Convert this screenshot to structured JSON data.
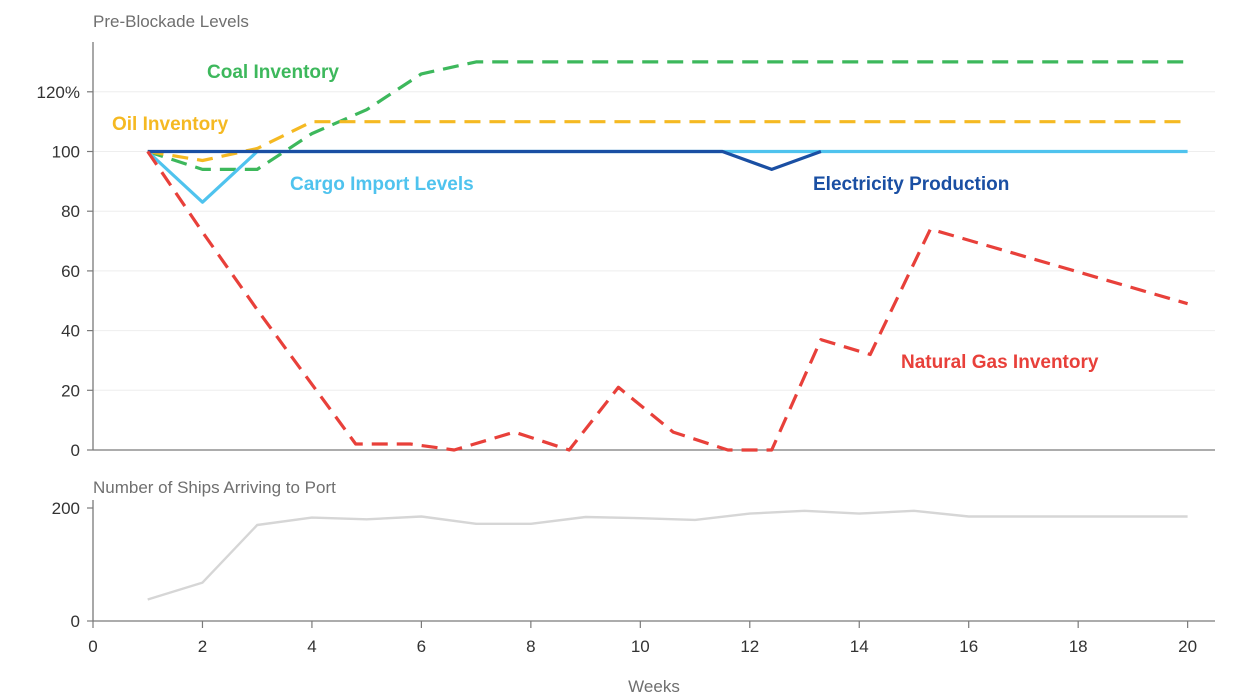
{
  "chart_data": [
    {
      "type": "line",
      "title": "Pre-Blockade Levels",
      "xlabel": "Weeks",
      "ylabel": "",
      "xlim": [
        0,
        20.5
      ],
      "ylim": [
        0,
        130
      ],
      "y_ticks": [
        0,
        20,
        40,
        60,
        80,
        100,
        120
      ],
      "y_tick_labels": [
        "0",
        "20",
        "40",
        "60",
        "80",
        "100",
        "120%"
      ],
      "grid": "horizontal",
      "series": [
        {
          "name": "Coal Inventory",
          "color": "#3db85c",
          "style": "dashed",
          "points": [
            [
              1,
              100
            ],
            [
              2,
              94
            ],
            [
              3,
              94
            ],
            [
              4,
              106
            ],
            [
              5,
              114
            ],
            [
              5.5,
              120
            ],
            [
              6,
              126
            ],
            [
              7,
              130
            ],
            [
              20,
              130
            ]
          ]
        },
        {
          "name": "Oil Inventory",
          "color": "#f5b922",
          "style": "dashed",
          "points": [
            [
              1,
              100
            ],
            [
              2,
              97
            ],
            [
              3,
              101
            ],
            [
              4,
              110
            ],
            [
              20,
              110
            ]
          ]
        },
        {
          "name": "Cargo Import Levels",
          "color": "#4fc3ee",
          "style": "solid",
          "points": [
            [
              1,
              100
            ],
            [
              2,
              83
            ],
            [
              3,
              100
            ],
            [
              20,
              100
            ]
          ]
        },
        {
          "name": "Electricity Production",
          "color": "#1a4fa3",
          "style": "solid",
          "points": [
            [
              1,
              100
            ],
            [
              2.9,
              100
            ],
            [
              11.5,
              100
            ],
            [
              12.4,
              94
            ],
            [
              13.3,
              100
            ]
          ]
        },
        {
          "name": "Natural Gas Inventory",
          "color": "#e8403a",
          "style": "dashed",
          "points": [
            [
              1,
              100
            ],
            [
              2,
              73
            ],
            [
              3,
              47
            ],
            [
              4,
              22
            ],
            [
              4.8,
              2
            ],
            [
              5.8,
              2
            ],
            [
              6.6,
              0
            ],
            [
              7.7,
              6
            ],
            [
              8.7,
              0
            ],
            [
              9.6,
              21
            ],
            [
              10.6,
              6
            ],
            [
              11.6,
              0
            ],
            [
              12.4,
              0
            ],
            [
              13.3,
              37
            ],
            [
              14.2,
              32
            ],
            [
              15.3,
              74
            ],
            [
              20,
              49
            ]
          ]
        }
      ]
    },
    {
      "type": "line",
      "title": "Number of Ships Arriving to Port",
      "xlabel": "Weeks",
      "ylabel": "",
      "xlim": [
        0,
        20.5
      ],
      "ylim": [
        0,
        200
      ],
      "y_ticks": [
        0,
        200
      ],
      "y_tick_labels": [
        "0",
        "200"
      ],
      "x_ticks": [
        0,
        2,
        4,
        6,
        8,
        10,
        12,
        14,
        16,
        18,
        20
      ],
      "series": [
        {
          "color": "#d6d6d6",
          "style": "solid",
          "points": [
            [
              1,
              38
            ],
            [
              2,
              68
            ],
            [
              3,
              170
            ],
            [
              4,
              183
            ],
            [
              5,
              180
            ],
            [
              6,
              185
            ],
            [
              7,
              172
            ],
            [
              8,
              172
            ],
            [
              9,
              184
            ],
            [
              10,
              182
            ],
            [
              11,
              179
            ],
            [
              12,
              190
            ],
            [
              13,
              195
            ],
            [
              14,
              190
            ],
            [
              15,
              195
            ],
            [
              16,
              185
            ],
            [
              17,
              185
            ],
            [
              18,
              185
            ],
            [
              19,
              185
            ],
            [
              20,
              185
            ]
          ]
        }
      ]
    }
  ]
}
